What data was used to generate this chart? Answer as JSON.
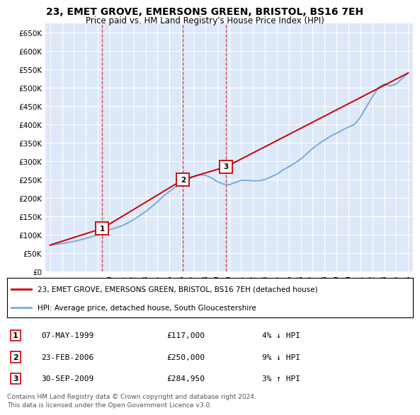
{
  "title": "23, EMET GROVE, EMERSONS GREEN, BRISTOL, BS16 7EH",
  "subtitle": "Price paid vs. HM Land Registry's House Price Index (HPI)",
  "legend_line1": "23, EMET GROVE, EMERSONS GREEN, BRISTOL, BS16 7EH (detached house)",
  "legend_line2": "HPI: Average price, detached house, South Gloucestershire",
  "ylim": [
    0,
    675000
  ],
  "yticks": [
    0,
    50000,
    100000,
    150000,
    200000,
    250000,
    300000,
    350000,
    400000,
    450000,
    500000,
    550000,
    600000,
    650000
  ],
  "ytick_labels": [
    "£0",
    "£50K",
    "£100K",
    "£150K",
    "£200K",
    "£250K",
    "£300K",
    "£350K",
    "£400K",
    "£450K",
    "£500K",
    "£550K",
    "£600K",
    "£650K"
  ],
  "background_color": "#ffffff",
  "plot_bg_color": "#dde8f8",
  "grid_color": "#ffffff",
  "red_line_color": "#cc0000",
  "blue_line_color": "#7aaadd",
  "transactions": [
    {
      "num": 1,
      "date": "07-MAY-1999",
      "price": 117000,
      "pct": "4%",
      "dir": "↓",
      "x": 1999.36
    },
    {
      "num": 2,
      "date": "23-FEB-2006",
      "price": 250000,
      "pct": "9%",
      "dir": "↓",
      "x": 2006.14
    },
    {
      "num": 3,
      "date": "30-SEP-2009",
      "price": 284950,
      "pct": "3%",
      "dir": "↑",
      "x": 2009.75
    }
  ],
  "hpi_x": [
    1995.0,
    1995.5,
    1996.0,
    1996.5,
    1997.0,
    1997.5,
    1998.0,
    1998.5,
    1999.0,
    1999.5,
    2000.0,
    2000.5,
    2001.0,
    2001.5,
    2002.0,
    2002.5,
    2003.0,
    2003.5,
    2004.0,
    2004.5,
    2005.0,
    2005.5,
    2006.0,
    2006.5,
    2007.0,
    2007.5,
    2008.0,
    2008.5,
    2009.0,
    2009.5,
    2010.0,
    2010.5,
    2011.0,
    2011.5,
    2012.0,
    2012.5,
    2013.0,
    2013.5,
    2014.0,
    2014.5,
    2015.0,
    2015.5,
    2016.0,
    2016.5,
    2017.0,
    2017.5,
    2018.0,
    2018.5,
    2019.0,
    2019.5,
    2020.0,
    2020.5,
    2021.0,
    2021.5,
    2022.0,
    2022.5,
    2023.0,
    2023.5,
    2024.0,
    2024.5,
    2025.0
  ],
  "hpi_y": [
    72000,
    74000,
    76000,
    79000,
    82000,
    86000,
    90000,
    95000,
    100000,
    107000,
    114000,
    119000,
    124000,
    132000,
    141000,
    152000,
    163000,
    176000,
    190000,
    205000,
    218000,
    230000,
    240000,
    248000,
    258000,
    263000,
    262000,
    255000,
    245000,
    238000,
    236000,
    242000,
    248000,
    248000,
    247000,
    247000,
    250000,
    257000,
    265000,
    276000,
    285000,
    295000,
    306000,
    320000,
    335000,
    347000,
    358000,
    368000,
    376000,
    385000,
    393000,
    400000,
    420000,
    448000,
    475000,
    500000,
    510000,
    505000,
    510000,
    525000,
    540000
  ],
  "price_x": [
    1995.0,
    1999.36,
    2006.14,
    2009.75,
    2025.0
  ],
  "price_y": [
    72000,
    117000,
    250000,
    284950,
    540000
  ],
  "footer1": "Contains HM Land Registry data © Crown copyright and database right 2024.",
  "footer2": "This data is licensed under the Open Government Licence v3.0.",
  "xtick_years": [
    1995,
    1996,
    1997,
    1998,
    1999,
    2000,
    2001,
    2002,
    2003,
    2004,
    2005,
    2006,
    2007,
    2008,
    2009,
    2010,
    2011,
    2012,
    2013,
    2014,
    2015,
    2016,
    2017,
    2018,
    2019,
    2020,
    2021,
    2022,
    2023,
    2024,
    2025
  ]
}
